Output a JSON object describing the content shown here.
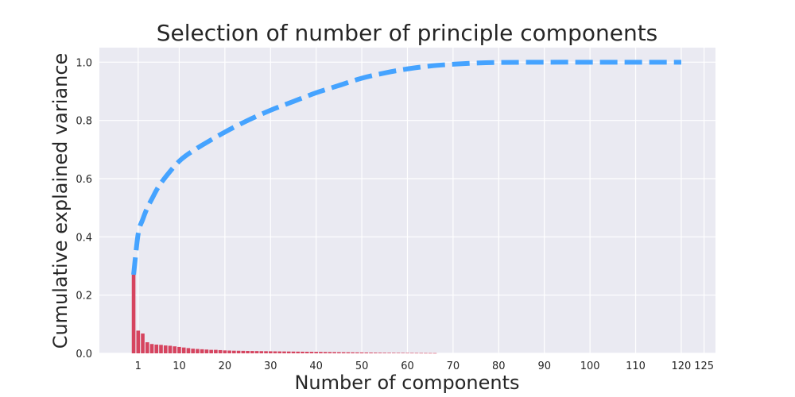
{
  "colors": {
    "plot_background": "#EAEAF2",
    "grid": "#FFFFFF",
    "bars": "#D6445F",
    "line": "#45A3FF",
    "text": "#262626"
  },
  "chart_data": {
    "type": "bar",
    "title": "Selection of number of principle components",
    "xlabel": "Number of components",
    "ylabel": "Cumulative explained variance",
    "xlim": [
      -7.5,
      127.5
    ],
    "ylim": [
      0,
      1.05
    ],
    "xticks": [
      1,
      10,
      20,
      30,
      40,
      50,
      60,
      70,
      80,
      90,
      100,
      110,
      120,
      125
    ],
    "yticks": [
      0.0,
      0.2,
      0.4,
      0.6,
      0.8,
      1.0
    ],
    "ytick_labels": [
      "0.0",
      "0.2",
      "0.4",
      "0.6",
      "0.8",
      "1.0"
    ],
    "grid": true,
    "series": [
      {
        "type": "bar",
        "x_start": 0,
        "values": [
          0.27,
          0.078,
          0.068,
          0.038,
          0.032,
          0.03,
          0.029,
          0.027,
          0.026,
          0.024,
          0.022,
          0.02,
          0.018,
          0.016,
          0.015,
          0.014,
          0.013,
          0.012,
          0.012,
          0.011,
          0.01,
          0.0095,
          0.009,
          0.0088,
          0.0085,
          0.0082,
          0.008,
          0.0078,
          0.0075,
          0.0073,
          0.007,
          0.0068,
          0.0066,
          0.0064,
          0.0062,
          0.006,
          0.0058,
          0.0056,
          0.0054,
          0.0052,
          0.005,
          0.0048,
          0.0046,
          0.0044,
          0.0042,
          0.004,
          0.0038,
          0.0036,
          0.0034,
          0.0032,
          0.003,
          0.0028,
          0.0026,
          0.0024,
          0.0022,
          0.002,
          0.0019,
          0.0018,
          0.0017,
          0.0016,
          0.0015,
          0.0014,
          0.0013,
          0.0012,
          0.0011,
          0.001,
          0.0009
        ]
      },
      {
        "type": "line",
        "style": "dashed",
        "x": [
          0,
          1,
          2,
          3,
          4,
          5,
          6,
          8,
          10,
          12,
          15,
          20,
          25,
          30,
          35,
          40,
          45,
          50,
          55,
          60,
          65,
          70,
          75,
          80,
          90,
          100,
          110,
          120
        ],
        "y": [
          0.27,
          0.41,
          0.46,
          0.5,
          0.53,
          0.56,
          0.585,
          0.625,
          0.66,
          0.685,
          0.715,
          0.76,
          0.8,
          0.835,
          0.865,
          0.895,
          0.92,
          0.945,
          0.963,
          0.977,
          0.987,
          0.993,
          0.997,
          0.999,
          1.0,
          1.0,
          1.0,
          1.0
        ]
      }
    ]
  }
}
